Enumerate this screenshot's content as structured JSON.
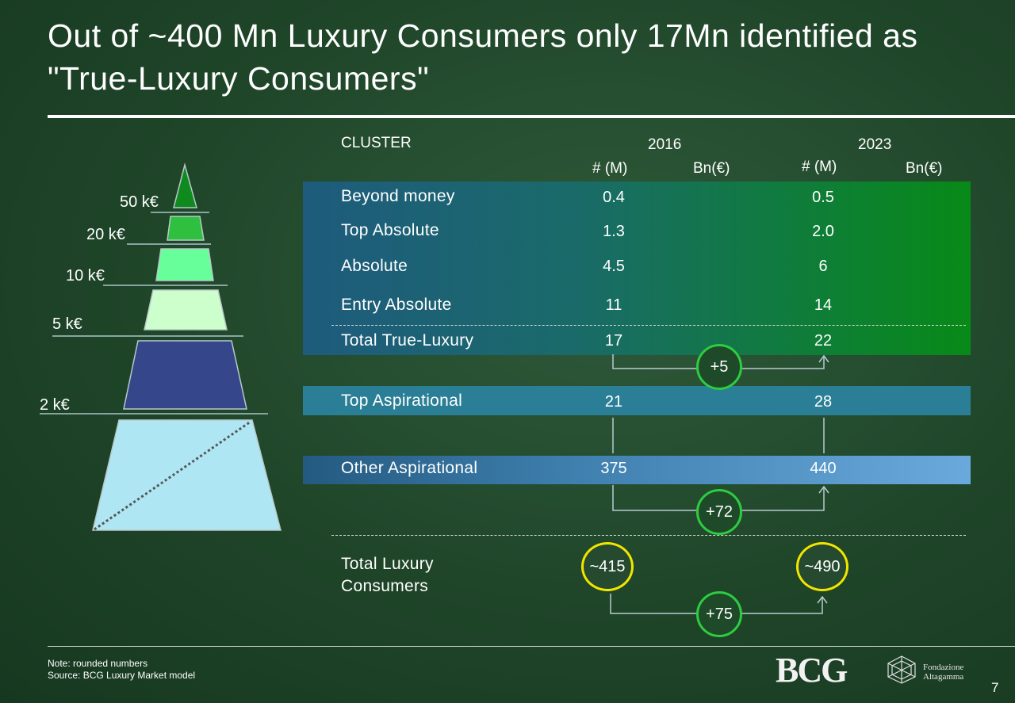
{
  "title": "Out of ~400 Mn Luxury Consumers only 17Mn identified as \"True-Luxury Consumers\"",
  "header": {
    "cluster": "CLUSTER",
    "year_2016": "2016",
    "year_2023": "2023",
    "col_num_2016": "# (M)",
    "col_bn_2016": "Bn(€)",
    "col_num_2023": "# (M)",
    "col_bn_2023": "Bn(€)"
  },
  "rows": [
    {
      "label": "Beyond money",
      "v2016": "0.4",
      "v2023": "0.5"
    },
    {
      "label": "Top Absolute",
      "v2016": "1.3",
      "v2023": "2.0"
    },
    {
      "label": "Absolute",
      "v2016": "4.5",
      "v2023": "6"
    },
    {
      "label": "Entry Absolute",
      "v2016": "11",
      "v2023": "14"
    },
    {
      "label": "Total True-Luxury",
      "v2016": "17",
      "v2023": "22"
    },
    {
      "label": "Top Aspirational",
      "v2016": "21",
      "v2023": "28"
    },
    {
      "label": "Other Aspirational",
      "v2016": "375",
      "v2023": "440"
    }
  ],
  "total": {
    "label_line1": "Total Luxury",
    "label_line2": "Consumers",
    "v2016": "~415",
    "v2023": "~490"
  },
  "deltas": {
    "true_luxury": "+5",
    "other_aspirational": "+72",
    "total": "+75"
  },
  "tiers": [
    "50 k€",
    "20 k€",
    "10 k€",
    "5 k€",
    "2 k€"
  ],
  "colors": {
    "band_true_luxury_start": "#1e5b7d",
    "band_true_luxury_end": "#078a17",
    "band_top_aspirational": "#2a7f96",
    "band_other_aspirational_start": "#245a80",
    "band_other_aspirational_end": "#6aa9dc",
    "circle_green": "#2ecc40",
    "circle_yellow": "#f2e600"
  },
  "footer": {
    "note": "Note: rounded numbers",
    "source": "Source: BCG Luxury Market model",
    "logo_bcg": "BCG",
    "logo_alta_line1": "Fondazione",
    "logo_alta_line2": "Altagamma",
    "page": "7"
  }
}
